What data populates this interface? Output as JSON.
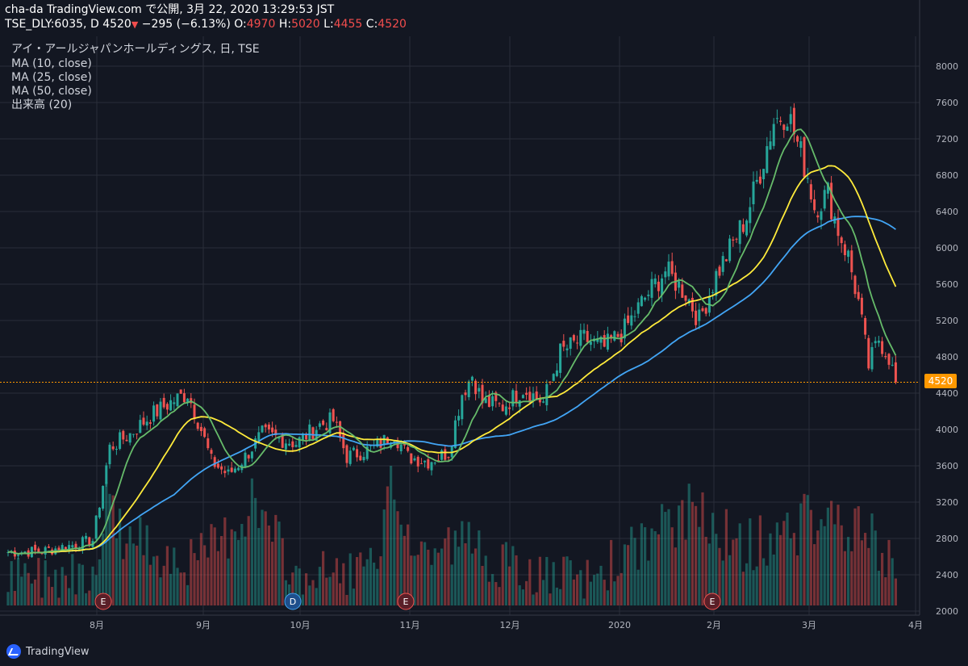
{
  "header": {
    "line1": "cha-da TradingView.com で公開, 3月 22, 2020 13:29:53 JST",
    "symbol": "TSE_DLY:6035, D",
    "last": "4520",
    "change": "−295 (−6.13%)",
    "o_label": "O:",
    "o": "4970",
    "h_label": "H:",
    "h": "5020",
    "l_label": "L:",
    "l": "4455",
    "c_label": "C:",
    "c": "4520"
  },
  "legend": {
    "title": "アイ・アールジャパンホールディングス, 日, TSE",
    "ma10": "MA (10, close)",
    "ma25": "MA (25, close)",
    "ma50": "MA (50, close)",
    "volume": "出来高 (20)"
  },
  "brand": {
    "name": "TradingView"
  },
  "colors": {
    "background": "#131722",
    "grid": "#2a2e39",
    "up": "#26a69a",
    "down": "#ef5350",
    "ma10": "#66bb6a",
    "ma25": "#ffeb3b",
    "ma50": "#42a5f5",
    "price_line": "#ff9800"
  },
  "chart_data": {
    "type": "candlestick",
    "price_axis": {
      "ticks": [
        2000,
        2400,
        2800,
        3200,
        3600,
        4000,
        4400,
        4800,
        5200,
        5600,
        6000,
        6400,
        6800,
        7200,
        7600,
        8000
      ],
      "range": [
        2000,
        8000
      ]
    },
    "time_axis": {
      "labels": [
        "8月",
        "9月",
        "10月",
        "11月",
        "12月",
        "2020",
        "2月",
        "3月",
        "4月"
      ]
    },
    "last_price": 4520,
    "events": [
      "E",
      "E",
      "D",
      "E",
      "E"
    ],
    "anchors": [
      {
        "d": 0,
        "p": 2650
      },
      {
        "d": 10,
        "p": 2660
      },
      {
        "d": 18,
        "p": 2720
      },
      {
        "d": 25,
        "p": 2780
      },
      {
        "d": 30,
        "p": 3800
      },
      {
        "d": 36,
        "p": 3950
      },
      {
        "d": 42,
        "p": 4150
      },
      {
        "d": 48,
        "p": 4300
      },
      {
        "d": 53,
        "p": 4400
      },
      {
        "d": 57,
        "p": 4000
      },
      {
        "d": 60,
        "p": 3650
      },
      {
        "d": 65,
        "p": 3500
      },
      {
        "d": 70,
        "p": 3700
      },
      {
        "d": 75,
        "p": 3950
      },
      {
        "d": 80,
        "p": 3900
      },
      {
        "d": 85,
        "p": 3850
      },
      {
        "d": 92,
        "p": 4050
      },
      {
        "d": 96,
        "p": 4100
      },
      {
        "d": 100,
        "p": 3700
      },
      {
        "d": 108,
        "p": 3800
      },
      {
        "d": 114,
        "p": 3950
      },
      {
        "d": 118,
        "p": 3700
      },
      {
        "d": 124,
        "p": 3650
      },
      {
        "d": 130,
        "p": 3750
      },
      {
        "d": 134,
        "p": 4400
      },
      {
        "d": 137,
        "p": 4600
      },
      {
        "d": 140,
        "p": 4300
      },
      {
        "d": 146,
        "p": 4250
      },
      {
        "d": 152,
        "p": 4450
      },
      {
        "d": 158,
        "p": 4300
      },
      {
        "d": 163,
        "p": 4850
      },
      {
        "d": 170,
        "p": 5000
      },
      {
        "d": 176,
        "p": 4900
      },
      {
        "d": 182,
        "p": 5100
      },
      {
        "d": 188,
        "p": 5450
      },
      {
        "d": 194,
        "p": 5750
      },
      {
        "d": 200,
        "p": 5500
      },
      {
        "d": 204,
        "p": 5200
      },
      {
        "d": 209,
        "p": 5700
      },
      {
        "d": 214,
        "p": 6050
      },
      {
        "d": 218,
        "p": 6350
      },
      {
        "d": 222,
        "p": 6850
      },
      {
        "d": 226,
        "p": 7400
      },
      {
        "d": 230,
        "p": 7500
      },
      {
        "d": 233,
        "p": 7150
      },
      {
        "d": 236,
        "p": 6800
      },
      {
        "d": 238,
        "p": 6450
      },
      {
        "d": 242,
        "p": 6600
      },
      {
        "d": 245,
        "p": 6200
      },
      {
        "d": 248,
        "p": 5900
      },
      {
        "d": 251,
        "p": 5400
      },
      {
        "d": 254,
        "p": 4700
      },
      {
        "d": 257,
        "p": 5000
      },
      {
        "d": 260,
        "p": 4800
      },
      {
        "d": 262,
        "p": 4520
      }
    ],
    "volume_anchors": [
      {
        "d": 0,
        "v": 2350
      },
      {
        "d": 25,
        "v": 2500
      },
      {
        "d": 30,
        "v": 3350
      },
      {
        "d": 34,
        "v": 2850
      },
      {
        "d": 55,
        "v": 2550
      },
      {
        "d": 64,
        "v": 2850
      },
      {
        "d": 72,
        "v": 3250
      },
      {
        "d": 85,
        "v": 2400
      },
      {
        "d": 110,
        "v": 2500
      },
      {
        "d": 113,
        "v": 3550
      },
      {
        "d": 120,
        "v": 2650
      },
      {
        "d": 135,
        "v": 2800
      },
      {
        "d": 150,
        "v": 2450
      },
      {
        "d": 170,
        "v": 2350
      },
      {
        "d": 205,
        "v": 3200
      },
      {
        "d": 215,
        "v": 2700
      },
      {
        "d": 230,
        "v": 2900
      },
      {
        "d": 240,
        "v": 3100
      },
      {
        "d": 255,
        "v": 2800
      },
      {
        "d": 262,
        "v": 2450
      }
    ]
  }
}
